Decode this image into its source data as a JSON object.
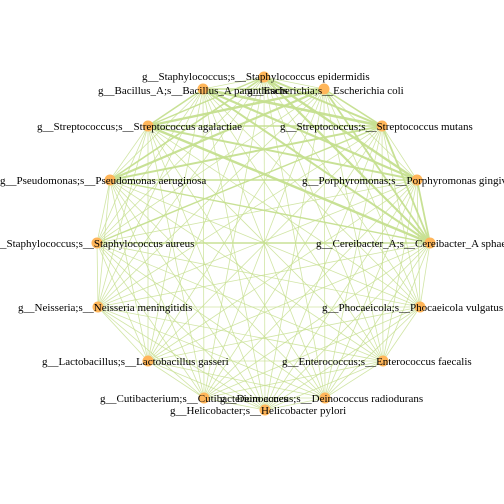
{
  "network": {
    "edge_color": "#c5df8f",
    "node_color": "#ffb65a",
    "nodes": [
      {
        "id": "staph_epi",
        "label": "g__Staphylococcus;s__Staphylococcus epidermidis"
      },
      {
        "id": "bacillus",
        "label": "g__Bacillus_A;s__Bacillus_A paranthracis"
      },
      {
        "id": "ecoli",
        "label": "g__Escherichia;s__Escherichia coli"
      },
      {
        "id": "strep_aga",
        "label": "g__Streptococcus;s__Streptococcus agalactiae"
      },
      {
        "id": "strep_mut",
        "label": "g__Streptococcus;s__Streptococcus mutans"
      },
      {
        "id": "pseudo",
        "label": "g__Pseudomonas;s__Pseudomonas aeruginosa"
      },
      {
        "id": "porphyro",
        "label": "g__Porphyromonas;s__Porphyromonas gingivalis"
      },
      {
        "id": "staph_aur",
        "label": "g__Staphylococcus;s__Staphylococcus aureus"
      },
      {
        "id": "cereibacter",
        "label": "g__Cereibacter_A;s__Cereibacter_A sphaeroides"
      },
      {
        "id": "neisseria",
        "label": "g__Neisseria;s__Neisseria meningitidis"
      },
      {
        "id": "phocaeicola",
        "label": "g__Phocaeicola;s__Phocaeicola vulgatus"
      },
      {
        "id": "lacto",
        "label": "g__Lactobacillus;s__Lactobacillus gasseri"
      },
      {
        "id": "entero",
        "label": "g__Enterococcus;s__Enterococcus faecalis"
      },
      {
        "id": "cuti",
        "label": "g__Cutibacterium;s__Cutibacterium acnes"
      },
      {
        "id": "deino",
        "label": "g__Deinococcus;s__Deinococcus radiodurans"
      },
      {
        "id": "helico",
        "label": "g__Helicobacter;s__Helicobacter pylori"
      }
    ]
  }
}
